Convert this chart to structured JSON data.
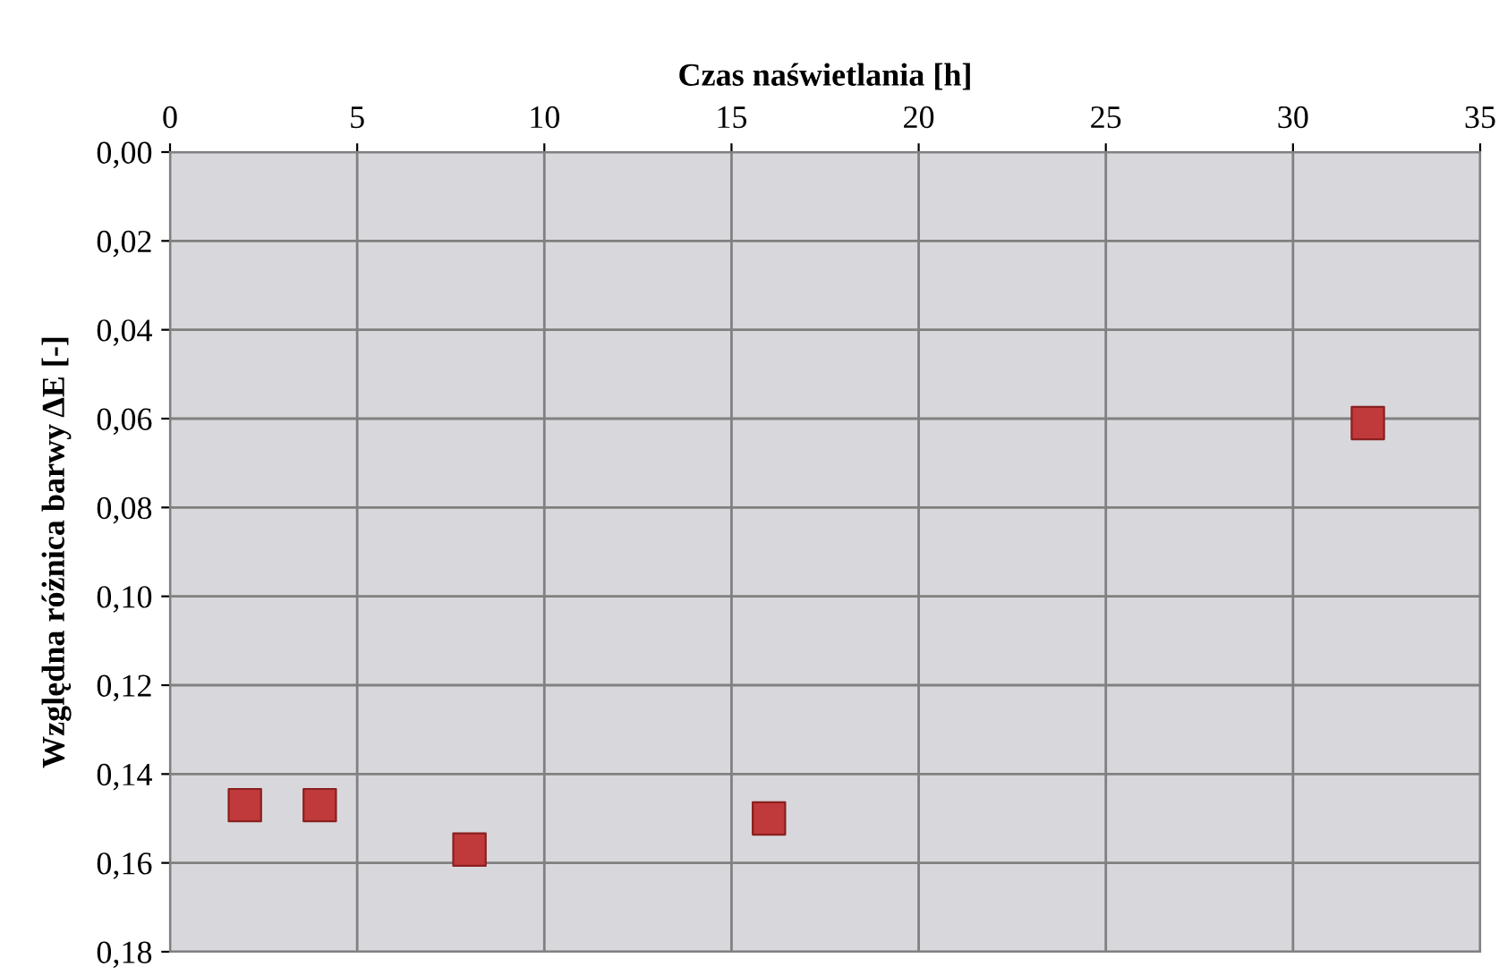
{
  "chart_data": {
    "type": "scatter",
    "xlabel": "Czas naświetlania [h]",
    "ylabel": "Względna różnica barwy ΔE [-]",
    "x": [
      2.0,
      4.0,
      8.0,
      16.0,
      32.0
    ],
    "values": [
      0.147,
      0.147,
      0.157,
      0.15,
      0.061
    ],
    "color": "#c0393b",
    "marker": "square",
    "grid": true,
    "xlim": [
      0,
      35
    ],
    "xticks": [
      0,
      5,
      10,
      15,
      20,
      25,
      30,
      35
    ],
    "ylim": [
      0.18,
      0.0
    ],
    "yticks": [
      {
        "value": 0.0,
        "label": "0,00"
      },
      {
        "value": 0.02,
        "label": "0,02"
      },
      {
        "value": 0.04,
        "label": "0,04"
      },
      {
        "value": 0.06,
        "label": "0,06"
      },
      {
        "value": 0.08,
        "label": "0,08"
      },
      {
        "value": 0.1,
        "label": "0,10"
      },
      {
        "value": 0.12,
        "label": "0,12"
      },
      {
        "value": 0.14,
        "label": "0,14"
      },
      {
        "value": 0.16,
        "label": "0,16"
      },
      {
        "value": 0.18,
        "label": "0,18"
      }
    ]
  }
}
